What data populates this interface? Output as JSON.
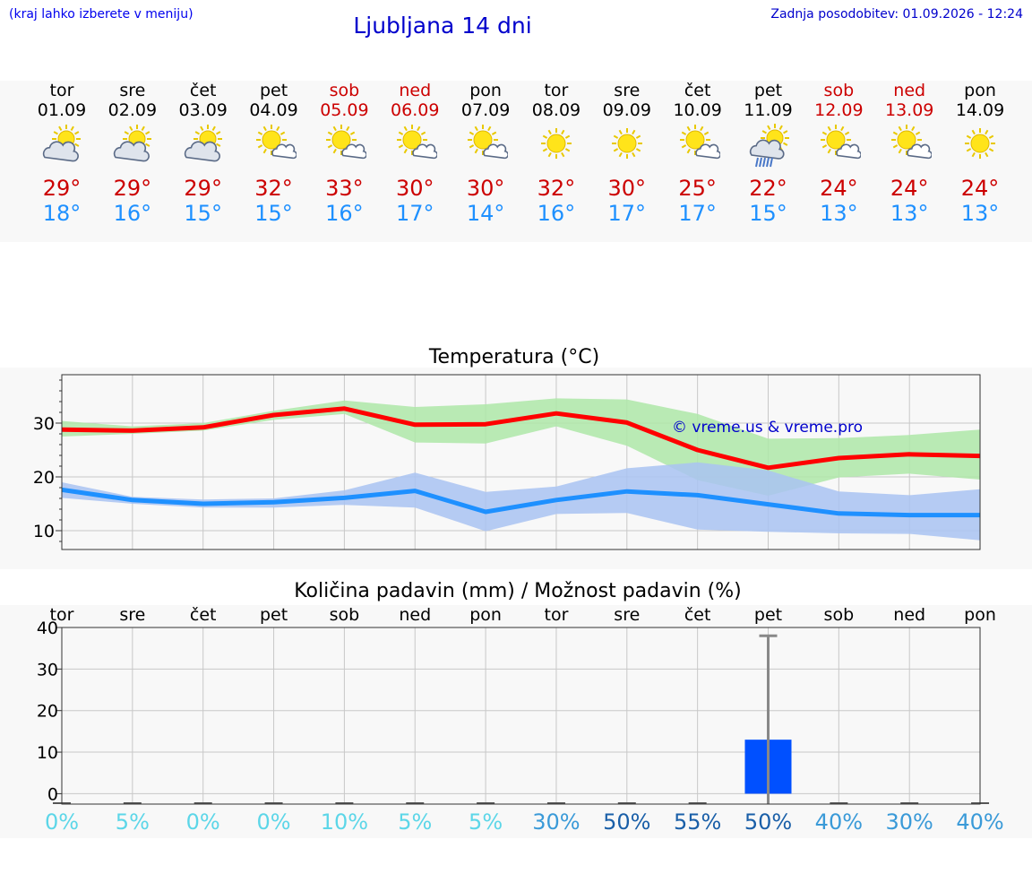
{
  "header": {
    "hint": "(kraj lahko izberete v meniju)",
    "title": "Ljubljana 14 dni",
    "updated": "Zadnja posodobitev: 01.09.2026 - 12:24"
  },
  "colors": {
    "weekend": "#cc0000",
    "tmax": "#cc0000",
    "tmin": "#1e90ff",
    "max_band": "#aee8a8",
    "min_band": "#a9c3f2",
    "precip_bar": "#0050ff"
  },
  "days": [
    {
      "name": "tor",
      "date": "01.09",
      "weekend": false,
      "icon": "partly-cloudy-icon",
      "tmax": "29°",
      "tmin": "18°"
    },
    {
      "name": "sre",
      "date": "02.09",
      "weekend": false,
      "icon": "partly-cloudy-icon",
      "tmax": "29°",
      "tmin": "16°"
    },
    {
      "name": "čet",
      "date": "03.09",
      "weekend": false,
      "icon": "partly-cloudy-icon",
      "tmax": "29°",
      "tmin": "15°"
    },
    {
      "name": "pet",
      "date": "04.09",
      "weekend": false,
      "icon": "mostly-sunny-icon",
      "tmax": "32°",
      "tmin": "15°"
    },
    {
      "name": "sob",
      "date": "05.09",
      "weekend": true,
      "icon": "mostly-sunny-icon",
      "tmax": "33°",
      "tmin": "16°"
    },
    {
      "name": "ned",
      "date": "06.09",
      "weekend": true,
      "icon": "mostly-sunny-icon",
      "tmax": "30°",
      "tmin": "17°"
    },
    {
      "name": "pon",
      "date": "07.09",
      "weekend": false,
      "icon": "mostly-sunny-icon",
      "tmax": "30°",
      "tmin": "14°"
    },
    {
      "name": "tor",
      "date": "08.09",
      "weekend": false,
      "icon": "sunny-icon",
      "tmax": "32°",
      "tmin": "16°"
    },
    {
      "name": "sre",
      "date": "09.09",
      "weekend": false,
      "icon": "sunny-icon",
      "tmax": "30°",
      "tmin": "17°"
    },
    {
      "name": "čet",
      "date": "10.09",
      "weekend": false,
      "icon": "mostly-sunny-icon",
      "tmax": "25°",
      "tmin": "17°"
    },
    {
      "name": "pet",
      "date": "11.09",
      "weekend": false,
      "icon": "rain-showers-icon",
      "tmax": "22°",
      "tmin": "15°"
    },
    {
      "name": "sob",
      "date": "12.09",
      "weekend": true,
      "icon": "mostly-sunny-icon",
      "tmax": "24°",
      "tmin": "13°"
    },
    {
      "name": "ned",
      "date": "13.09",
      "weekend": true,
      "icon": "mostly-sunny-icon",
      "tmax": "24°",
      "tmin": "13°"
    },
    {
      "name": "pon",
      "date": "14.09",
      "weekend": false,
      "icon": "sunny-icon",
      "tmax": "24°",
      "tmin": "13°"
    }
  ],
  "copyright": "© vreme.us & vreme.pro",
  "chart_data": [
    {
      "type": "line",
      "title": "Temperatura (°C)",
      "ylim": [
        6.5,
        39
      ],
      "yticks": [
        10,
        20,
        30
      ],
      "grid": true,
      "x": [
        0,
        1,
        2,
        3,
        4,
        5,
        6,
        7,
        8,
        9,
        10,
        11,
        12,
        13
      ],
      "series": [
        {
          "role": "max",
          "color": "#ff0000",
          "values": [
            28.8,
            28.6,
            29.2,
            31.5,
            32.7,
            29.7,
            29.8,
            31.8,
            30.1,
            25.0,
            21.7,
            23.5,
            24.2,
            23.9
          ],
          "band_low": [
            27.5,
            28.0,
            28.6,
            30.6,
            31.7,
            26.4,
            26.2,
            29.4,
            25.8,
            19.4,
            16.5,
            19.9,
            20.6,
            19.5
          ],
          "band_high": [
            30.4,
            29.4,
            30.0,
            32.3,
            34.2,
            33.0,
            33.5,
            34.6,
            34.4,
            31.7,
            27.1,
            27.2,
            27.8,
            28.8
          ]
        },
        {
          "role": "min",
          "color": "#1e90ff",
          "values": [
            17.6,
            15.7,
            15.0,
            15.3,
            16.1,
            17.4,
            13.5,
            15.7,
            17.3,
            16.6,
            14.9,
            13.2,
            12.9,
            12.9
          ],
          "band_low": [
            16.1,
            15.0,
            14.3,
            14.3,
            14.8,
            14.3,
            9.9,
            13.1,
            13.3,
            10.2,
            9.8,
            9.5,
            9.4,
            8.2
          ],
          "band_high": [
            19.0,
            16.3,
            15.8,
            16.0,
            17.5,
            20.8,
            17.2,
            18.2,
            21.6,
            22.7,
            21.2,
            17.3,
            16.6,
            17.7
          ]
        }
      ]
    },
    {
      "type": "bar",
      "title": "Količina padavin (mm) / Možnost padavin (%)",
      "categories": [
        "tor",
        "sre",
        "čet",
        "pet",
        "sob",
        "ned",
        "pon",
        "tor",
        "sre",
        "čet",
        "pet",
        "sob",
        "ned",
        "pon"
      ],
      "values": [
        0,
        0,
        0,
        0,
        0,
        0,
        0,
        0,
        0,
        0,
        13,
        0,
        0,
        0
      ],
      "error_high": [
        0,
        0,
        0,
        0,
        0,
        0,
        0,
        0,
        0,
        0,
        38,
        0,
        0,
        0
      ],
      "ylim": [
        -2.5,
        40
      ],
      "yticks": [
        0,
        10,
        20,
        30,
        40
      ],
      "grid": true,
      "probability": [
        "0%",
        "5%",
        "0%",
        "0%",
        "10%",
        "5%",
        "5%",
        "30%",
        "50%",
        "55%",
        "50%",
        "40%",
        "30%",
        "40%"
      ],
      "probability_values": [
        0,
        5,
        0,
        0,
        10,
        5,
        5,
        30,
        50,
        55,
        50,
        40,
        30,
        40
      ]
    }
  ]
}
